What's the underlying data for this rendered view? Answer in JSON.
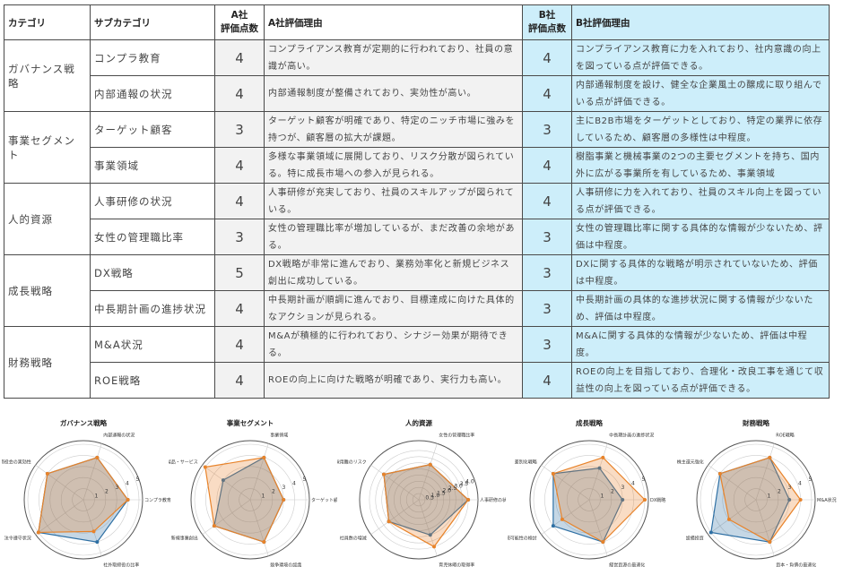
{
  "table": {
    "headers": {
      "category": "カテゴリ",
      "subcategory": "サブカテゴリ",
      "a_score": "A社\n評価点数",
      "a_score_line1": "A社",
      "a_score_line2": "評価点数",
      "a_reason": "A社評価理由",
      "b_score_line1": "B社",
      "b_score_line2": "評価点数",
      "b_reason": "B社評価理由"
    },
    "groups": [
      {
        "category": "ガバナンス戦略",
        "rows": [
          {
            "sub": "コンプラ教育",
            "a_score": "4",
            "a_reason": "コンプライアンス教育が定期的に行われており、社員の意識が高い。",
            "b_score": "4",
            "b_reason": "コンプライアンス教育に力を入れており、社内意識の向上を図っている点が評価できる。"
          },
          {
            "sub": "内部通報の状況",
            "a_score": "4",
            "a_reason": "内部通報制度が整備されており、実効性が高い。",
            "b_score": "4",
            "b_reason": "内部通報制度を設け、健全な企業風土の醸成に取り組んでいる点が評価できる。"
          }
        ]
      },
      {
        "category": "事業セグメント",
        "rows": [
          {
            "sub": "ターゲット顧客",
            "a_score": "3",
            "a_reason": "ターゲット顧客が明確であり、特定のニッチ市場に強みを持つが、顧客層の拡大が課題。",
            "b_score": "3",
            "b_reason": "主にB2B市場をターゲットとしており、特定の業界に依存しているため、顧客層の多様性は中程度。"
          },
          {
            "sub": "事業領域",
            "a_score": "4",
            "a_reason": "多様な事業領域に展開しており、リスク分散が図られている。特に成長市場への参入が見られる。",
            "b_score": "4",
            "b_reason": "樹脂事業と機械事業の2つの主要セグメントを持ち、国内外に広がる事業所を有しているため、事業領域"
          }
        ]
      },
      {
        "category": "人的資源",
        "rows": [
          {
            "sub": "人事研修の状況",
            "a_score": "4",
            "a_reason": "人事研修が充実しており、社員のスキルアップが図られている。",
            "b_score": "4",
            "b_reason": "人事研修に力を入れており、社員のスキル向上を図っている点が評価できる。"
          },
          {
            "sub": "女性の管理職比率",
            "a_score": "3",
            "a_reason": "女性の管理職比率が増加しているが、まだ改善の余地がある。",
            "b_score": "3",
            "b_reason": "女性の管理職比率に関する具体的な情報が少ないため、評価は中程度。"
          }
        ]
      },
      {
        "category": "成長戦略",
        "rows": [
          {
            "sub": "DX戦略",
            "a_score": "5",
            "a_reason": "DX戦略が非常に進んでおり、業務効率化と新規ビジネス創出に成功している。",
            "b_score": "3",
            "b_reason": "DXに関する具体的な戦略が明示されていないため、評価は中程度。"
          },
          {
            "sub": "中長期計画の進捗状況",
            "a_score": "4",
            "a_reason": "中長期計画が順調に進んでおり、目標達成に向けた具体的なアクションが見られる。",
            "b_score": "3",
            "b_reason": "中長期計画の具体的な進捗状況に関する情報が少ないため、評価は中程度。"
          }
        ]
      },
      {
        "category": "財務戦略",
        "rows": [
          {
            "sub": "M&A状況",
            "a_score": "4",
            "a_reason": "M&Aが積極的に行われており、シナジー効果が期待できる。",
            "b_score": "3",
            "b_reason": "M&Aに関する具体的な情報が少ないため、評価は中程度。"
          },
          {
            "sub": "ROE戦略",
            "a_score": "4",
            "a_reason": "ROEの向上に向けた戦略が明確であり、実行力も高い。",
            "b_score": "4",
            "b_reason": "ROEの向上を目指しており、合理化・改良工事を通じて収益性の向上を図っている点が評価できる。"
          }
        ]
      }
    ]
  },
  "colors": {
    "company_a": "#e8832a",
    "company_b": "#2e6fa3",
    "b_column_bg": "#cdeefa",
    "a_column_bg": "#f2f2f2"
  },
  "chart_data": [
    {
      "type": "radar",
      "title": "ガバナンス戦略",
      "axes": [
        "コンプラ教育",
        "内部通報の状況",
        "取締役会の実効性",
        "法令遵守状況",
        "社外取締役の比率"
      ],
      "radial_ticks": [
        "1",
        "2",
        "3",
        "4",
        "5"
      ],
      "rlim": [
        0,
        5
      ],
      "series": [
        {
          "name": "B社",
          "color": "#2e6fa3",
          "values": [
            4,
            4,
            4,
            5,
            4
          ]
        },
        {
          "name": "A社",
          "color": "#e8832a",
          "values": [
            4,
            4,
            4,
            5,
            3
          ]
        }
      ]
    },
    {
      "type": "radar",
      "title": "事業セグメント",
      "axes": [
        "ターゲット顧客",
        "事業領域",
        "新製品・サービス",
        "新規事業創出",
        "競争環境の認識"
      ],
      "radial_ticks": [
        "1",
        "2",
        "3",
        "4",
        "5"
      ],
      "rlim": [
        0,
        5
      ],
      "series": [
        {
          "name": "B社",
          "color": "#2e6fa3",
          "values": [
            3,
            4,
            3,
            4,
            4
          ]
        },
        {
          "name": "A社",
          "color": "#e8832a",
          "values": [
            3,
            4,
            5,
            4,
            4
          ]
        }
      ]
    },
    {
      "type": "radar",
      "title": "人的資源",
      "axes": [
        "人事研修の状況",
        "女性の管理職比率",
        "採用難のリスク",
        "社員数の増減",
        "育児休暇の取得率"
      ],
      "radial_ticks": [
        "0.5",
        "1.0",
        "1.5",
        "2.0",
        "2.5",
        "3.0",
        "3.5",
        "4.0"
      ],
      "rlim": [
        0,
        4.5
      ],
      "series": [
        {
          "name": "B社",
          "color": "#2e6fa3",
          "values": [
            4,
            3,
            3.5,
            3,
            3
          ]
        },
        {
          "name": "A社",
          "color": "#e8832a",
          "values": [
            4,
            3,
            3.5,
            3,
            4
          ]
        }
      ]
    },
    {
      "type": "radar",
      "title": "成長戦略",
      "axes": [
        "DX戦略",
        "中長期計画の進捗状況",
        "差別化戦略",
        "持続可能性の検討",
        "経営資源の最適化"
      ],
      "radial_ticks": [
        "1",
        "2",
        "3",
        "4",
        "5"
      ],
      "rlim": [
        0,
        5
      ],
      "series": [
        {
          "name": "B社",
          "color": "#2e6fa3",
          "values": [
            3,
            3,
            4,
            4,
            4
          ]
        },
        {
          "name": "A社",
          "color": "#e8832a",
          "values": [
            5,
            4,
            4,
            3,
            4
          ]
        }
      ]
    },
    {
      "type": "radar",
      "title": "財務戦略",
      "axes": [
        "M&A状況",
        "ROE戦略",
        "株主還元強化",
        "設備投資",
        "資本・負債の最適化"
      ],
      "radial_ticks": [
        "1",
        "2",
        "3",
        "4",
        "5"
      ],
      "rlim": [
        0,
        5
      ],
      "series": [
        {
          "name": "B社",
          "color": "#2e6fa3",
          "values": [
            3,
            4,
            4,
            5,
            4
          ]
        },
        {
          "name": "A社",
          "color": "#e8832a",
          "values": [
            4,
            4,
            4,
            3,
            4
          ]
        }
      ]
    }
  ]
}
